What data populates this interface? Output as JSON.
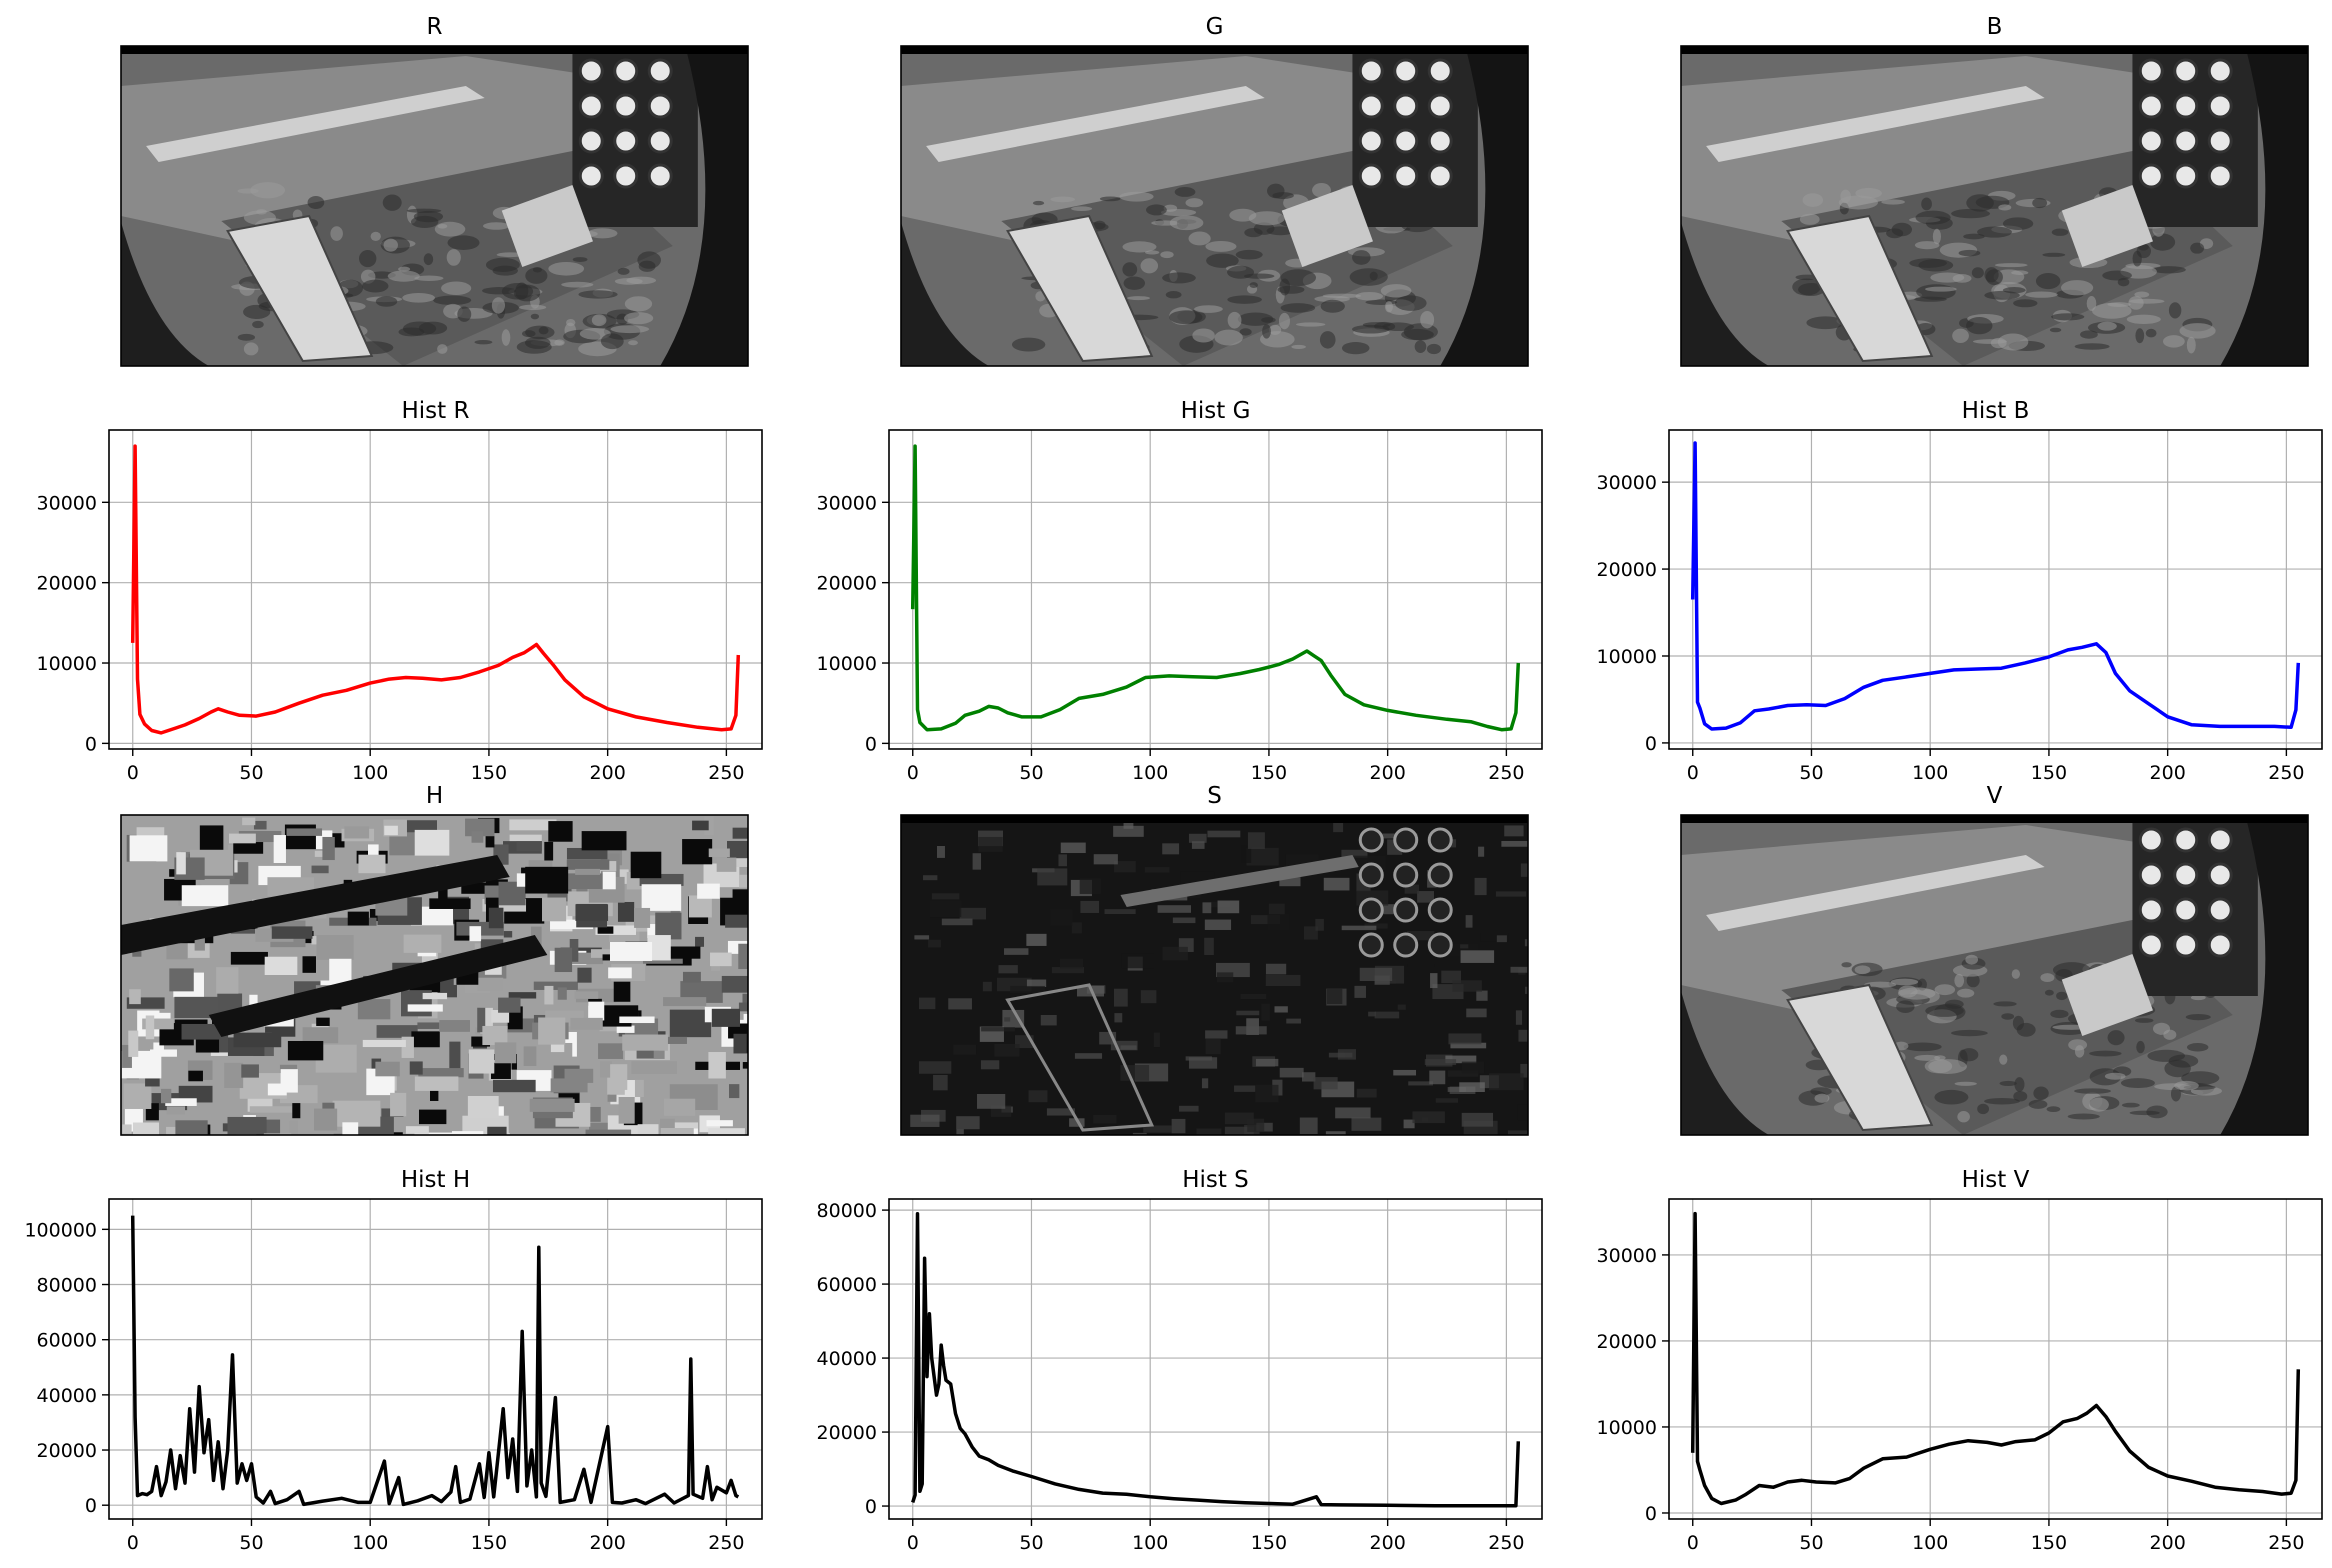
{
  "chart_data": [
    {
      "type": "image",
      "title": "R",
      "channel": "R",
      "colormap": "gray",
      "scene": "fisheye security camera, container yard at night"
    },
    {
      "type": "image",
      "title": "G",
      "channel": "G",
      "colormap": "gray",
      "scene": "fisheye security camera, container yard at night"
    },
    {
      "type": "image",
      "title": "B",
      "channel": "B",
      "colormap": "gray",
      "scene": "fisheye security camera, container yard at night"
    },
    {
      "type": "line",
      "title": "Hist R",
      "color": "#ff0000",
      "xlim": [
        -10,
        265
      ],
      "ylim": [
        -700,
        39000
      ],
      "xticks": [
        0,
        50,
        100,
        150,
        200,
        250
      ],
      "yticks": [
        0,
        10000,
        20000,
        30000
      ],
      "grid": true,
      "points": [
        [
          0,
          12500
        ],
        [
          1,
          37000
        ],
        [
          2,
          8000
        ],
        [
          3,
          3600
        ],
        [
          5,
          2400
        ],
        [
          8,
          1600
        ],
        [
          12,
          1300
        ],
        [
          18,
          1900
        ],
        [
          22,
          2300
        ],
        [
          28,
          3100
        ],
        [
          33,
          3900
        ],
        [
          36,
          4300
        ],
        [
          40,
          3900
        ],
        [
          45,
          3500
        ],
        [
          52,
          3400
        ],
        [
          60,
          3900
        ],
        [
          70,
          5000
        ],
        [
          80,
          6000
        ],
        [
          90,
          6600
        ],
        [
          100,
          7500
        ],
        [
          108,
          8000
        ],
        [
          115,
          8200
        ],
        [
          122,
          8100
        ],
        [
          130,
          7900
        ],
        [
          138,
          8200
        ],
        [
          146,
          8900
        ],
        [
          154,
          9700
        ],
        [
          160,
          10700
        ],
        [
          165,
          11300
        ],
        [
          168,
          11900
        ],
        [
          170,
          12300
        ],
        [
          173,
          11200
        ],
        [
          177,
          9800
        ],
        [
          182,
          7900
        ],
        [
          190,
          5800
        ],
        [
          200,
          4300
        ],
        [
          212,
          3300
        ],
        [
          225,
          2600
        ],
        [
          238,
          2000
        ],
        [
          248,
          1700
        ],
        [
          252,
          1800
        ],
        [
          254,
          3500
        ],
        [
          255,
          11000
        ]
      ]
    },
    {
      "type": "line",
      "title": "Hist G",
      "color": "#008000",
      "xlim": [
        -10,
        265
      ],
      "ylim": [
        -700,
        39000
      ],
      "xticks": [
        0,
        50,
        100,
        150,
        200,
        250
      ],
      "yticks": [
        0,
        10000,
        20000,
        30000
      ],
      "grid": true,
      "points": [
        [
          0,
          16700
        ],
        [
          1,
          37000
        ],
        [
          2,
          4200
        ],
        [
          3,
          2600
        ],
        [
          6,
          1700
        ],
        [
          12,
          1800
        ],
        [
          18,
          2500
        ],
        [
          22,
          3500
        ],
        [
          28,
          4000
        ],
        [
          32,
          4600
        ],
        [
          36,
          4400
        ],
        [
          40,
          3800
        ],
        [
          46,
          3300
        ],
        [
          54,
          3300
        ],
        [
          62,
          4200
        ],
        [
          70,
          5600
        ],
        [
          80,
          6100
        ],
        [
          90,
          7000
        ],
        [
          98,
          8200
        ],
        [
          108,
          8400
        ],
        [
          118,
          8300
        ],
        [
          128,
          8200
        ],
        [
          138,
          8700
        ],
        [
          146,
          9200
        ],
        [
          154,
          9800
        ],
        [
          160,
          10500
        ],
        [
          166,
          11500
        ],
        [
          169,
          10900
        ],
        [
          172,
          10300
        ],
        [
          176,
          8500
        ],
        [
          182,
          6100
        ],
        [
          190,
          4800
        ],
        [
          200,
          4100
        ],
        [
          212,
          3500
        ],
        [
          225,
          3000
        ],
        [
          235,
          2700
        ],
        [
          242,
          2100
        ],
        [
          248,
          1700
        ],
        [
          252,
          1800
        ],
        [
          254,
          3800
        ],
        [
          255,
          10000
        ]
      ]
    },
    {
      "type": "line",
      "title": "Hist B",
      "color": "#0000ff",
      "xlim": [
        -10,
        265
      ],
      "ylim": [
        -700,
        36000
      ],
      "xticks": [
        0,
        50,
        100,
        150,
        200,
        250
      ],
      "yticks": [
        0,
        10000,
        20000,
        30000
      ],
      "grid": true,
      "points": [
        [
          0,
          16500
        ],
        [
          1,
          34500
        ],
        [
          2,
          4700
        ],
        [
          3,
          4000
        ],
        [
          5,
          2200
        ],
        [
          8,
          1600
        ],
        [
          14,
          1700
        ],
        [
          20,
          2300
        ],
        [
          26,
          3700
        ],
        [
          32,
          3900
        ],
        [
          40,
          4300
        ],
        [
          48,
          4400
        ],
        [
          56,
          4300
        ],
        [
          64,
          5100
        ],
        [
          72,
          6400
        ],
        [
          80,
          7200
        ],
        [
          90,
          7600
        ],
        [
          100,
          8000
        ],
        [
          110,
          8400
        ],
        [
          120,
          8500
        ],
        [
          130,
          8600
        ],
        [
          140,
          9200
        ],
        [
          150,
          9900
        ],
        [
          158,
          10700
        ],
        [
          164,
          11000
        ],
        [
          170,
          11400
        ],
        [
          174,
          10400
        ],
        [
          178,
          8000
        ],
        [
          184,
          6000
        ],
        [
          192,
          4500
        ],
        [
          200,
          3000
        ],
        [
          210,
          2100
        ],
        [
          222,
          1900
        ],
        [
          235,
          1900
        ],
        [
          245,
          1900
        ],
        [
          252,
          1800
        ],
        [
          254,
          3800
        ],
        [
          255,
          9200
        ]
      ]
    },
    {
      "type": "image",
      "title": "H",
      "channel": "H",
      "colormap": "gray",
      "scene": "hue channel, blocky posterized regions"
    },
    {
      "type": "image",
      "title": "S",
      "channel": "S",
      "colormap": "gray",
      "scene": "saturation channel, mostly dark"
    },
    {
      "type": "image",
      "title": "V",
      "channel": "V",
      "colormap": "gray",
      "scene": "value channel, grayscale camera frame"
    },
    {
      "type": "line",
      "title": "Hist H",
      "color": "#000000",
      "xlim": [
        -10,
        265
      ],
      "ylim": [
        -5000,
        111000
      ],
      "xticks": [
        0,
        50,
        100,
        150,
        200,
        250
      ],
      "yticks": [
        0,
        20000,
        40000,
        60000,
        80000,
        100000
      ],
      "grid": true,
      "points": [
        [
          0,
          105000
        ],
        [
          1,
          32000
        ],
        [
          2,
          3500
        ],
        [
          4,
          4200
        ],
        [
          6,
          3800
        ],
        [
          8,
          5000
        ],
        [
          10,
          14000
        ],
        [
          12,
          3500
        ],
        [
          14,
          8500
        ],
        [
          16,
          20000
        ],
        [
          18,
          6000
        ],
        [
          20,
          18000
        ],
        [
          22,
          8000
        ],
        [
          24,
          35000
        ],
        [
          26,
          12000
        ],
        [
          28,
          43000
        ],
        [
          30,
          19000
        ],
        [
          32,
          31000
        ],
        [
          34,
          9000
        ],
        [
          36,
          23000
        ],
        [
          38,
          6000
        ],
        [
          40,
          20000
        ],
        [
          42,
          54500
        ],
        [
          44,
          8000
        ],
        [
          46,
          15000
        ],
        [
          48,
          9000
        ],
        [
          50,
          15000
        ],
        [
          52,
          3000
        ],
        [
          55,
          800
        ],
        [
          58,
          5000
        ],
        [
          60,
          600
        ],
        [
          65,
          2000
        ],
        [
          70,
          5000
        ],
        [
          72,
          300
        ],
        [
          80,
          1500
        ],
        [
          88,
          2500
        ],
        [
          95,
          1000
        ],
        [
          100,
          1000
        ],
        [
          106,
          16000
        ],
        [
          108,
          600
        ],
        [
          112,
          10000
        ],
        [
          114,
          300
        ],
        [
          120,
          1600
        ],
        [
          126,
          3500
        ],
        [
          130,
          1300
        ],
        [
          134,
          4800
        ],
        [
          136,
          14000
        ],
        [
          138,
          1000
        ],
        [
          142,
          2200
        ],
        [
          146,
          15000
        ],
        [
          148,
          2800
        ],
        [
          150,
          19000
        ],
        [
          152,
          3000
        ],
        [
          156,
          35000
        ],
        [
          158,
          10000
        ],
        [
          160,
          24000
        ],
        [
          162,
          5000
        ],
        [
          164,
          63000
        ],
        [
          166,
          7000
        ],
        [
          168,
          20000
        ],
        [
          170,
          3000
        ],
        [
          171,
          93500
        ],
        [
          172,
          8000
        ],
        [
          174,
          3200
        ],
        [
          178,
          39000
        ],
        [
          180,
          1000
        ],
        [
          186,
          2000
        ],
        [
          190,
          13000
        ],
        [
          193,
          1000
        ],
        [
          200,
          28500
        ],
        [
          202,
          1000
        ],
        [
          206,
          800
        ],
        [
          212,
          2000
        ],
        [
          216,
          600
        ],
        [
          224,
          4000
        ],
        [
          228,
          800
        ],
        [
          234,
          3500
        ],
        [
          235,
          53000
        ],
        [
          236,
          4000
        ],
        [
          240,
          2500
        ],
        [
          242,
          14000
        ],
        [
          244,
          2000
        ],
        [
          246,
          6500
        ],
        [
          250,
          4500
        ],
        [
          252,
          9000
        ],
        [
          254,
          3500
        ],
        [
          255,
          3000
        ]
      ]
    },
    {
      "type": "line",
      "title": "Hist S",
      "color": "#000000",
      "xlim": [
        -10,
        265
      ],
      "ylim": [
        -3500,
        83000
      ],
      "xticks": [
        0,
        50,
        100,
        150,
        200,
        250
      ],
      "yticks": [
        0,
        20000,
        40000,
        60000,
        80000
      ],
      "grid": true,
      "points": [
        [
          0,
          1000
        ],
        [
          1,
          3000
        ],
        [
          2,
          79000
        ],
        [
          3,
          4000
        ],
        [
          4,
          6000
        ],
        [
          5,
          67000
        ],
        [
          6,
          35000
        ],
        [
          7,
          52000
        ],
        [
          8,
          40000
        ],
        [
          9,
          35000
        ],
        [
          10,
          30000
        ],
        [
          11,
          33000
        ],
        [
          12,
          43500
        ],
        [
          13,
          38000
        ],
        [
          14,
          34000
        ],
        [
          16,
          33000
        ],
        [
          18,
          25000
        ],
        [
          20,
          21000
        ],
        [
          22,
          19500
        ],
        [
          25,
          16000
        ],
        [
          28,
          13500
        ],
        [
          32,
          12500
        ],
        [
          36,
          11000
        ],
        [
          42,
          9500
        ],
        [
          50,
          8000
        ],
        [
          60,
          6000
        ],
        [
          70,
          4500
        ],
        [
          80,
          3500
        ],
        [
          90,
          3200
        ],
        [
          100,
          2500
        ],
        [
          110,
          2000
        ],
        [
          120,
          1600
        ],
        [
          130,
          1200
        ],
        [
          140,
          900
        ],
        [
          150,
          700
        ],
        [
          160,
          500
        ],
        [
          170,
          2500
        ],
        [
          172,
          400
        ],
        [
          180,
          300
        ],
        [
          200,
          200
        ],
        [
          220,
          100
        ],
        [
          240,
          100
        ],
        [
          254,
          100
        ],
        [
          255,
          17500
        ]
      ]
    },
    {
      "type": "line",
      "title": "Hist V",
      "color": "#000000",
      "xlim": [
        -10,
        265
      ],
      "ylim": [
        -700,
        36500
      ],
      "xticks": [
        0,
        50,
        100,
        150,
        200,
        250
      ],
      "yticks": [
        0,
        10000,
        20000,
        30000
      ],
      "grid": true,
      "points": [
        [
          0,
          7000
        ],
        [
          1,
          34800
        ],
        [
          2,
          6000
        ],
        [
          3,
          5000
        ],
        [
          5,
          3200
        ],
        [
          8,
          1700
        ],
        [
          12,
          1100
        ],
        [
          18,
          1500
        ],
        [
          22,
          2100
        ],
        [
          28,
          3200
        ],
        [
          34,
          3000
        ],
        [
          40,
          3600
        ],
        [
          46,
          3800
        ],
        [
          52,
          3600
        ],
        [
          60,
          3500
        ],
        [
          66,
          4000
        ],
        [
          72,
          5200
        ],
        [
          80,
          6300
        ],
        [
          90,
          6500
        ],
        [
          100,
          7400
        ],
        [
          108,
          8000
        ],
        [
          116,
          8400
        ],
        [
          124,
          8200
        ],
        [
          130,
          7900
        ],
        [
          136,
          8300
        ],
        [
          144,
          8500
        ],
        [
          150,
          9300
        ],
        [
          156,
          10600
        ],
        [
          162,
          11000
        ],
        [
          166,
          11600
        ],
        [
          170,
          12500
        ],
        [
          174,
          11200
        ],
        [
          178,
          9500
        ],
        [
          184,
          7200
        ],
        [
          192,
          5300
        ],
        [
          200,
          4300
        ],
        [
          210,
          3700
        ],
        [
          220,
          3000
        ],
        [
          230,
          2700
        ],
        [
          240,
          2500
        ],
        [
          248,
          2200
        ],
        [
          252,
          2300
        ],
        [
          254,
          3800
        ],
        [
          255,
          16700
        ]
      ]
    }
  ]
}
